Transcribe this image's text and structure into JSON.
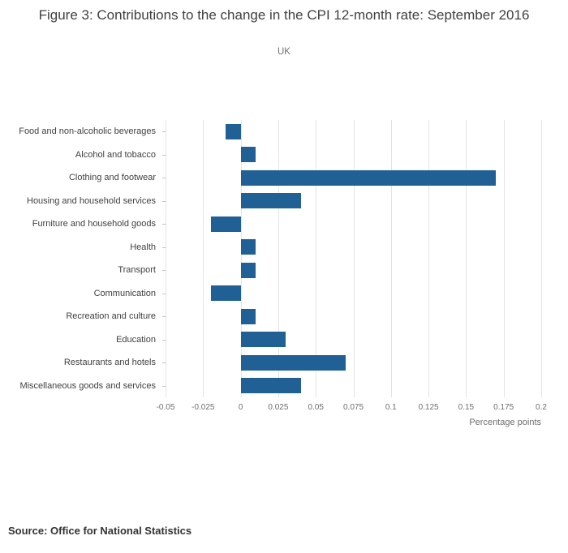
{
  "title": "Figure 3: Contributions to the change in the CPI 12-month rate: September 2016",
  "subtitle": "UK",
  "source": "Source: Office for National Statistics",
  "chart_data": {
    "type": "bar",
    "orientation": "horizontal",
    "title": "Figure 3: Contributions to the change in the CPI 12-month rate: September 2016",
    "subtitle": "UK",
    "categories": [
      "Food and non-alcoholic beverages",
      "Alcohol and tobacco",
      "Clothing and footwear",
      "Housing and household services",
      "Furniture and household goods",
      "Health",
      "Transport",
      "Communication",
      "Recreation and culture",
      "Education",
      "Restaurants and hotels",
      "Miscellaneous goods and services"
    ],
    "values": [
      -0.01,
      0.01,
      0.17,
      0.04,
      -0.02,
      0.01,
      0.01,
      -0.02,
      0.01,
      0.03,
      0.07,
      0.04
    ],
    "xlabel": "Percentage points",
    "ylabel": "",
    "xlim": [
      -0.05,
      0.2
    ],
    "xticks": [
      -0.05,
      -0.025,
      0,
      0.025,
      0.05,
      0.075,
      0.1,
      0.125,
      0.15,
      0.175,
      0.2
    ],
    "xtick_labels": [
      "-0.05",
      "-0.025",
      "0",
      "0.025",
      "0.05",
      "0.075",
      "0.1",
      "0.125",
      "0.15",
      "0.175",
      "0.2"
    ],
    "bar_color": "#206095",
    "grid": true,
    "legend": "none"
  }
}
